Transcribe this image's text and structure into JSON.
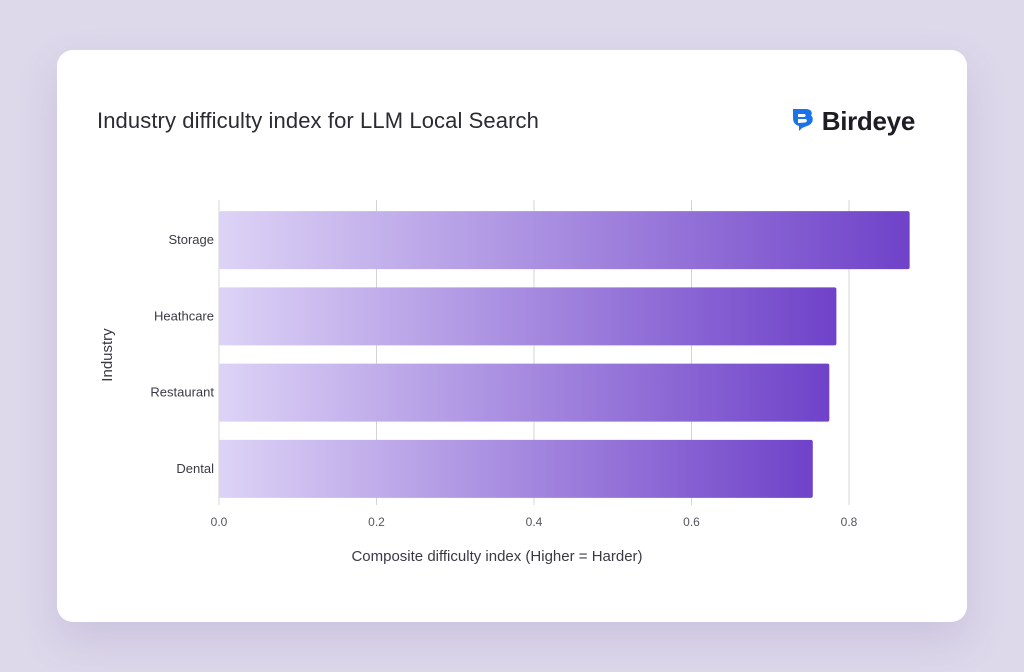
{
  "header": {
    "title": "Industry difficulty index for LLM Local Search",
    "brand": "Birdeye",
    "brand_icon": "birdeye-logo-icon",
    "brand_color": "#1a73e8"
  },
  "chart_data": {
    "type": "bar",
    "orientation": "horizontal",
    "title": "",
    "xlabel": "Composite difficulty index (Higher = Harder)",
    "ylabel": "Industry",
    "categories": [
      "Storage",
      "Heathcare",
      "Restaurant",
      "Dental"
    ],
    "values": [
      0.877,
      0.784,
      0.775,
      0.754
    ],
    "xlim": [
      0,
      0.88
    ],
    "xticks": [
      0.0,
      0.2,
      0.4,
      0.6,
      0.8
    ],
    "xtick_labels": [
      "0.0",
      "0.2",
      "0.4",
      "0.6",
      "0.8"
    ],
    "grid": "vertical",
    "colors": {
      "bar_start": "#ddd3f6",
      "bar_end": "#6f42c9",
      "grid": "#d4d4d8"
    }
  }
}
